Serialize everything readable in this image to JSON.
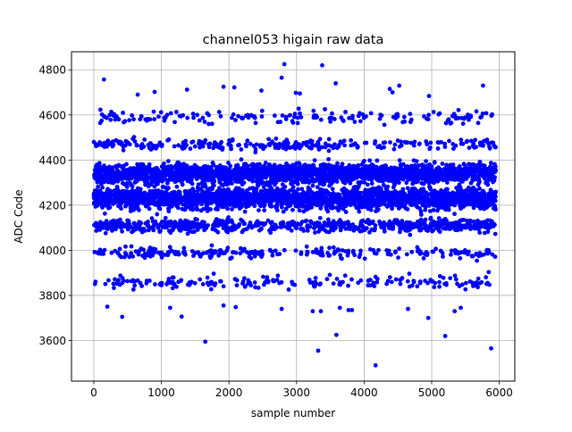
{
  "chart_data": {
    "type": "scatter",
    "title": "channel053 higain raw data",
    "xlabel": "sample number",
    "ylabel": "ADC Code",
    "xlim": [
      -330,
      6230
    ],
    "ylim": [
      3420,
      4880
    ],
    "x_ticks": [
      0,
      1000,
      2000,
      3000,
      4000,
      5000,
      6000
    ],
    "y_ticks": [
      3600,
      3800,
      4000,
      4200,
      4400,
      4600,
      4800
    ],
    "grid": true,
    "marker_color": "#0000ff",
    "sample_count": 5950,
    "bands": [
      {
        "center": 4340,
        "spread": 22,
        "fraction": 0.36
      },
      {
        "center": 4230,
        "spread": 22,
        "fraction": 0.36
      },
      {
        "center": 4110,
        "spread": 14,
        "fraction": 0.12
      },
      {
        "center": 4470,
        "spread": 12,
        "fraction": 0.05
      },
      {
        "center": 3990,
        "spread": 12,
        "fraction": 0.04
      },
      {
        "center": 4590,
        "spread": 15,
        "fraction": 0.03
      },
      {
        "center": 3860,
        "spread": 15,
        "fraction": 0.03
      }
    ],
    "outliers": [
      {
        "x": 150,
        "y": 4757
      },
      {
        "x": 2820,
        "y": 4825
      },
      {
        "x": 3380,
        "y": 4820
      },
      {
        "x": 1920,
        "y": 4725
      },
      {
        "x": 2080,
        "y": 4722
      },
      {
        "x": 2780,
        "y": 4765
      },
      {
        "x": 4520,
        "y": 4730
      },
      {
        "x": 5760,
        "y": 4730
      },
      {
        "x": 3580,
        "y": 4740
      },
      {
        "x": 4380,
        "y": 4715
      },
      {
        "x": 4420,
        "y": 4700
      },
      {
        "x": 650,
        "y": 4690
      },
      {
        "x": 900,
        "y": 4702
      },
      {
        "x": 1380,
        "y": 4712
      },
      {
        "x": 2480,
        "y": 4708
      },
      {
        "x": 2990,
        "y": 4698
      },
      {
        "x": 3050,
        "y": 4695
      },
      {
        "x": 4960,
        "y": 4684
      },
      {
        "x": 200,
        "y": 3750
      },
      {
        "x": 420,
        "y": 3705
      },
      {
        "x": 1300,
        "y": 3706
      },
      {
        "x": 1130,
        "y": 3745
      },
      {
        "x": 1650,
        "y": 3595
      },
      {
        "x": 1920,
        "y": 3755
      },
      {
        "x": 2100,
        "y": 3748
      },
      {
        "x": 2780,
        "y": 3740
      },
      {
        "x": 3240,
        "y": 3730
      },
      {
        "x": 3320,
        "y": 3555
      },
      {
        "x": 3360,
        "y": 3730
      },
      {
        "x": 3590,
        "y": 3625
      },
      {
        "x": 3640,
        "y": 3745
      },
      {
        "x": 3770,
        "y": 3735
      },
      {
        "x": 3820,
        "y": 3735
      },
      {
        "x": 4170,
        "y": 3490
      },
      {
        "x": 4650,
        "y": 3740
      },
      {
        "x": 4950,
        "y": 3700
      },
      {
        "x": 5200,
        "y": 3620
      },
      {
        "x": 5340,
        "y": 3730
      },
      {
        "x": 5430,
        "y": 3745
      },
      {
        "x": 5880,
        "y": 3565
      }
    ]
  }
}
